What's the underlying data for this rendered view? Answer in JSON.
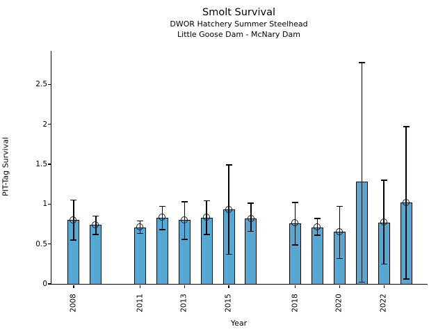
{
  "header": {
    "title": "Smolt Survival",
    "subtitle_line1": "DWOR Hatchery Summer Steelhead",
    "subtitle_line2": "Little Goose Dam - McNary Dam"
  },
  "chart_data": {
    "type": "bar",
    "title": "Smolt Survival",
    "subtitle": [
      "DWOR Hatchery Summer Steelhead",
      "Little Goose Dam - McNary Dam"
    ],
    "xlabel": "Year",
    "ylabel": "PIT-Tag Survival",
    "ylim": [
      0,
      2.92
    ],
    "xlim": [
      2007.0,
      2023.97
    ],
    "y_ticks": [
      0,
      0.5,
      1,
      1.5,
      2,
      2.5
    ],
    "y_tick_labels": [
      "0",
      "0.5",
      "1",
      "1.5",
      "2",
      "2.5"
    ],
    "x_tick_years": [
      2008,
      2011,
      2013,
      2015,
      2018,
      2020,
      2022
    ],
    "grid": false,
    "legend": "none",
    "bar_color": "#56A8D4",
    "bar_edge_color": "#000000",
    "error_color": "#000000",
    "series": [
      {
        "year": 2008,
        "value": 0.8,
        "err_low": 0.55,
        "err_high": 1.05,
        "marker": true
      },
      {
        "year": 2009,
        "value": 0.74,
        "err_low": 0.62,
        "err_high": 0.85,
        "marker": true
      },
      {
        "year": 2011,
        "value": 0.71,
        "err_low": 0.63,
        "err_high": 0.79,
        "marker": true
      },
      {
        "year": 2012,
        "value": 0.83,
        "err_low": 0.68,
        "err_high": 0.97,
        "marker": true
      },
      {
        "year": 2013,
        "value": 0.8,
        "err_low": 0.56,
        "err_high": 1.03,
        "marker": true
      },
      {
        "year": 2014,
        "value": 0.83,
        "err_low": 0.62,
        "err_high": 1.04,
        "marker": true
      },
      {
        "year": 2015,
        "value": 0.93,
        "err_low": 0.37,
        "err_high": 1.49,
        "marker": true
      },
      {
        "year": 2016,
        "value": 0.82,
        "err_low": 0.66,
        "err_high": 1.01,
        "marker": true
      },
      {
        "year": 2018,
        "value": 0.76,
        "err_low": 0.49,
        "err_high": 1.02,
        "marker": true
      },
      {
        "year": 2019,
        "value": 0.71,
        "err_low": 0.61,
        "err_high": 0.82,
        "marker": true
      },
      {
        "year": 2020,
        "value": 0.65,
        "err_low": 0.32,
        "err_high": 0.97,
        "marker": true
      },
      {
        "year": 2021,
        "value": 1.28,
        "err_low": 0.02,
        "err_high": 2.77,
        "marker": false
      },
      {
        "year": 2022,
        "value": 0.77,
        "err_low": 0.25,
        "err_high": 1.3,
        "marker": true
      },
      {
        "year": 2023,
        "value": 1.02,
        "err_low": 0.06,
        "err_high": 1.97,
        "marker": true
      }
    ]
  }
}
